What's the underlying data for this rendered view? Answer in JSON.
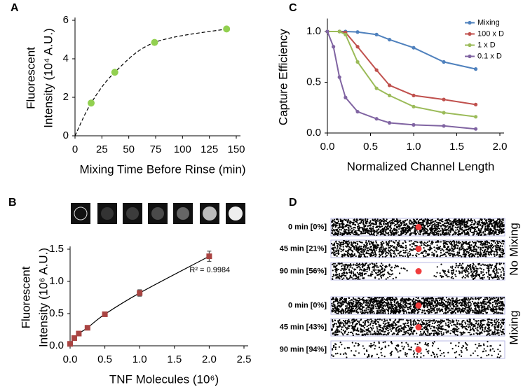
{
  "chart_data": [
    {
      "type": "scatter",
      "label": "A",
      "x": [
        15,
        37,
        74,
        141
      ],
      "values": [
        1.7,
        3.3,
        4.85,
        5.55
      ],
      "color": "#92d050",
      "marker": "circle",
      "fit_line": "dashed",
      "fit_from_origin": true,
      "xlim": [
        0,
        150
      ],
      "xticks": [
        0,
        25,
        50,
        75,
        100,
        125,
        150
      ],
      "ylim": [
        0,
        6
      ],
      "yticks": [
        0,
        2,
        4,
        6
      ],
      "xlabel": "Mixing Time Before Rinse (min)",
      "ylabel": [
        "Fluorescent",
        "Intensity (10⁴ A.U.)"
      ]
    },
    {
      "type": "line",
      "label": "C",
      "series": [
        {
          "name": "Mixing",
          "color": "#4f81bd",
          "x": [
            0,
            0.14,
            0.21,
            0.35,
            0.57,
            0.72,
            1.0,
            1.35,
            1.72
          ],
          "values": [
            1.0,
            1.0,
            1.0,
            0.995,
            0.97,
            0.92,
            0.84,
            0.7,
            0.63
          ]
        },
        {
          "name": "100 x D",
          "color": "#c0504d",
          "x": [
            0,
            0.14,
            0.21,
            0.35,
            0.57,
            0.72,
            1.0,
            1.35,
            1.72
          ],
          "values": [
            1.0,
            1.0,
            0.99,
            0.85,
            0.62,
            0.47,
            0.37,
            0.33,
            0.28
          ]
        },
        {
          "name": "1 x D",
          "color": "#9bbb59",
          "x": [
            0,
            0.14,
            0.21,
            0.35,
            0.57,
            0.72,
            1.0,
            1.35,
            1.72
          ],
          "values": [
            1.0,
            1.0,
            0.97,
            0.7,
            0.44,
            0.37,
            0.26,
            0.2,
            0.16
          ]
        },
        {
          "name": "0.1 x D",
          "color": "#8064a2",
          "x": [
            0,
            0.07,
            0.14,
            0.21,
            0.35,
            0.57,
            0.72,
            1.0,
            1.35,
            1.72
          ],
          "values": [
            1.0,
            0.85,
            0.55,
            0.35,
            0.21,
            0.14,
            0.1,
            0.08,
            0.07,
            0.04
          ]
        }
      ],
      "legend": "top-right",
      "xlim": [
        0,
        2
      ],
      "xticks": [
        {
          "value": 0,
          "label": "0.0"
        },
        0.5,
        {
          "value": 1,
          "label": "1.0"
        },
        1.5,
        {
          "value": 2,
          "label": "2.0"
        }
      ],
      "ylim": [
        0,
        1.1
      ],
      "yticks": [
        {
          "value": 0,
          "label": "0.0"
        },
        0.5,
        {
          "value": 1,
          "label": "1.0"
        }
      ],
      "xlabel": "Normalized Channel Length",
      "ylabel": [
        "Capture Efficiency"
      ]
    },
    {
      "type": "scatter",
      "label": "B",
      "x": [
        0,
        0.06,
        0.125,
        0.25,
        0.5,
        1.0,
        2.0
      ],
      "values": [
        0.03,
        0.12,
        0.19,
        0.28,
        0.49,
        0.82,
        1.39
      ],
      "errors": [
        0.02,
        0.02,
        0.02,
        0.02,
        0.03,
        0.05,
        0.08
      ],
      "color": "#a94442",
      "marker": "square",
      "fit_line": "solid",
      "fit_from_origin": false,
      "annotation": "R² = 0.9984",
      "xlim": [
        0,
        2.5
      ],
      "xticks": [
        {
          "value": 0,
          "label": "0.0"
        },
        0.5,
        {
          "value": 1,
          "label": "1.0"
        },
        1.5,
        {
          "value": 2,
          "label": "2.0"
        },
        2.5
      ],
      "ylim": [
        0,
        1.5
      ],
      "yticks": [
        {
          "value": 0,
          "label": "0.0"
        },
        0.5,
        {
          "value": 1,
          "label": "1.0"
        },
        1.5
      ],
      "xlabel": "TNF Molecules (10⁶)",
      "ylabel": [
        "Fluorescent",
        "Intensity (10⁶ A.U.)"
      ]
    }
  ],
  "diagram": {
    "label": "D",
    "groups": [
      {
        "name": "No Mixing",
        "rows": [
          "0 min [0%]",
          "45 min [21%]",
          "90 min [56%]"
        ]
      },
      {
        "name": "Mixing",
        "rows": [
          "0 min [0%]",
          "45 min [43%]",
          "90 min [94%]"
        ]
      }
    ]
  }
}
